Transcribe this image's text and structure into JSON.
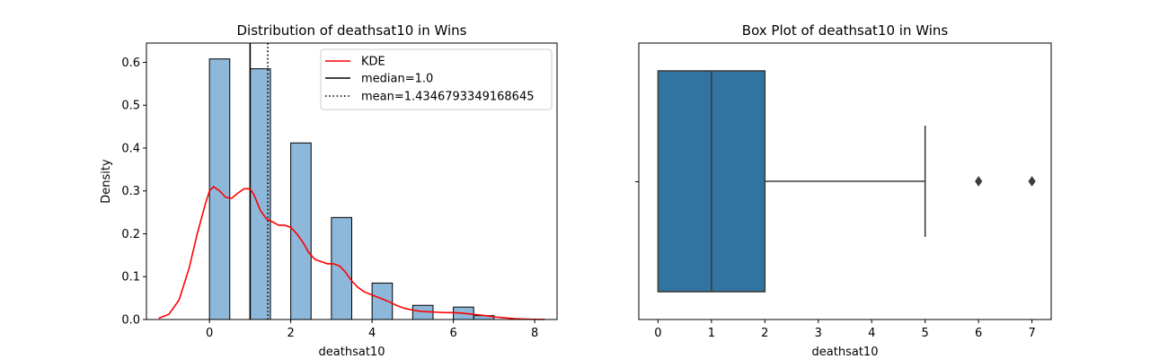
{
  "chart_data": [
    {
      "type": "histogram",
      "title": "Distribution of deathsat10 in Wins",
      "xlabel": "deathsat10",
      "ylabel": "Density",
      "xlim": [
        -1.55,
        8.55
      ],
      "ylim": [
        0,
        0.645
      ],
      "xticks": [
        0,
        2,
        4,
        6,
        8
      ],
      "yticks": [
        0.0,
        0.1,
        0.2,
        0.3,
        0.4,
        0.5,
        0.6
      ],
      "ytick_labels": [
        "0.0",
        "0.1",
        "0.2",
        "0.3",
        "0.4",
        "0.5",
        "0.6"
      ],
      "grid": false,
      "bins": [
        {
          "x0": 0.0,
          "x1": 0.5,
          "value": 0.608
        },
        {
          "x0": 1.0,
          "x1": 1.5,
          "value": 0.585
        },
        {
          "x0": 2.0,
          "x1": 2.5,
          "value": 0.412
        },
        {
          "x0": 3.0,
          "x1": 3.5,
          "value": 0.238
        },
        {
          "x0": 4.0,
          "x1": 4.5,
          "value": 0.085
        },
        {
          "x0": 5.0,
          "x1": 5.5,
          "value": 0.033
        },
        {
          "x0": 6.0,
          "x1": 6.5,
          "value": 0.029
        },
        {
          "x0": 6.5,
          "x1": 7.0,
          "value": 0.009
        }
      ],
      "bar_color": "#8db8da",
      "kde": {
        "name": "KDE",
        "color": "#ff0000",
        "x": [
          -1.25,
          -1.0,
          -0.75,
          -0.5,
          -0.3,
          -0.1,
          0.0,
          0.1,
          0.25,
          0.4,
          0.55,
          0.7,
          0.85,
          1.0,
          1.1,
          1.25,
          1.4,
          1.55,
          1.7,
          1.85,
          2.0,
          2.15,
          2.3,
          2.45,
          2.6,
          2.75,
          2.9,
          3.05,
          3.2,
          3.35,
          3.5,
          3.65,
          3.8,
          4.0,
          4.2,
          4.4,
          4.6,
          4.8,
          5.0,
          5.2,
          5.4,
          5.6,
          5.8,
          6.0,
          6.2,
          6.4,
          6.6,
          6.8,
          7.0,
          7.25,
          7.5,
          7.75,
          8.0,
          8.25
        ],
        "y": [
          0.003,
          0.012,
          0.045,
          0.12,
          0.2,
          0.27,
          0.3,
          0.31,
          0.3,
          0.285,
          0.283,
          0.295,
          0.305,
          0.305,
          0.29,
          0.255,
          0.235,
          0.228,
          0.22,
          0.22,
          0.215,
          0.2,
          0.18,
          0.155,
          0.14,
          0.135,
          0.13,
          0.13,
          0.125,
          0.11,
          0.09,
          0.075,
          0.065,
          0.057,
          0.05,
          0.042,
          0.033,
          0.026,
          0.022,
          0.019,
          0.018,
          0.017,
          0.016,
          0.016,
          0.015,
          0.013,
          0.011,
          0.009,
          0.006,
          0.004,
          0.002,
          0.001,
          0.0005,
          0.0002
        ]
      },
      "reference_lines": [
        {
          "name": "median=1.0",
          "value": 1.0,
          "style": "solid",
          "color": "#000000"
        },
        {
          "name": "mean=1.4346793349168645",
          "value": 1.4346793349168645,
          "style": "dotted",
          "color": "#000000"
        }
      ],
      "legend": {
        "placement": "top-right",
        "entries": [
          "KDE",
          "median=1.0",
          "mean=1.4346793349168645"
        ]
      }
    },
    {
      "type": "box",
      "title": "Box Plot of deathsat10 in Wins",
      "xlabel": "deathsat10",
      "ylabel": "",
      "xlim": [
        -0.36,
        7.36
      ],
      "xticks": [
        0,
        1,
        2,
        3,
        4,
        5,
        6,
        7
      ],
      "grid": false,
      "box": {
        "min": 0,
        "q1": 0,
        "median": 1,
        "q3": 2,
        "max": 5,
        "outliers": [
          6,
          7
        ]
      },
      "box_color": "#3274a1",
      "line_color": "#3d3d3d"
    }
  ]
}
